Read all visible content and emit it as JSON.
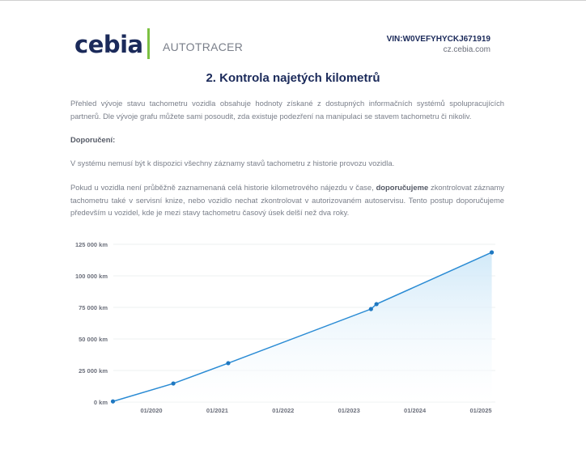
{
  "header": {
    "logo": "cebia",
    "product": "AUTOTRACER",
    "vin": "VIN:W0VEFYHYCKJ671919",
    "site": "cz.cebia.com"
  },
  "title": "2. Kontrola najetých kilometrů",
  "intro": "Přehled vývoje stavu tachometru vozidla obsahuje hodnoty získané z dostupných informačních systémů spolupracujících partnerů. Dle vývoje grafu můžete sami posoudit, zda existuje podezření na manipulaci se stavem tachometru či nikoliv.",
  "recommend_heading": "Doporučení:",
  "note": "V systému nemusí být k dispozici všechny záznamy stavů tachometru z historie provozu vozidla.",
  "advice_pre": "Pokud u vozidla není průběžně zaznamenaná celá historie kilometrového nájezdu v čase, ",
  "advice_bold": "doporučujeme",
  "advice_post": " zkontrolovat záznamy tachometru také v servisní knize, nebo vozidlo nechat zkontrolovat v autorizovaném autoservisu. Tento postup doporučujeme především u vozidel, kde je mezi stavy tachometru časový úsek delší než dva roky.",
  "colors": {
    "line": "#2a8bd4",
    "fill": "#d6ecfa",
    "brand": "#1b2a5a",
    "accent": "#7cc142"
  },
  "chart_data": {
    "type": "area",
    "x": [
      "2019-06",
      "2020-05",
      "2021-03",
      "2023-05",
      "2023-06",
      "2025-03"
    ],
    "values": [
      500,
      14700,
      30800,
      73700,
      77600,
      118600
    ],
    "yticks": [
      0,
      25000,
      50000,
      75000,
      100000,
      125000
    ],
    "ytick_labels": [
      "0 km",
      "25 000 km",
      "50 000 km",
      "75 000 km",
      "100 000 km",
      "125 000 km"
    ],
    "xtick_labels": [
      "01/2020",
      "01/2021",
      "01/2022",
      "01/2023",
      "01/2024",
      "01/2025"
    ],
    "ylim": [
      0,
      125000
    ],
    "grid": true
  }
}
